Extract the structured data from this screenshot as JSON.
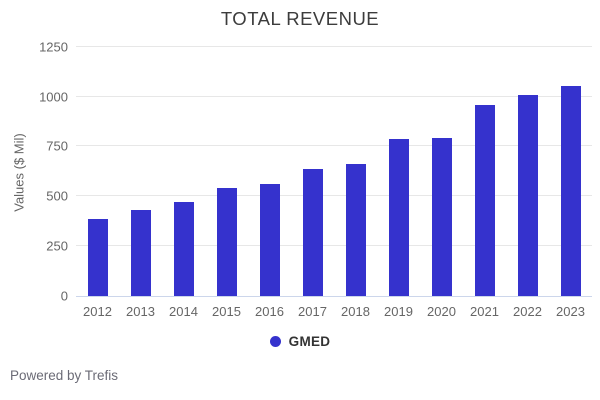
{
  "title": "TOTAL REVENUE",
  "footer": "Powered by Trefis",
  "colors": {
    "bar": "#3532cd",
    "grid": "#e7e7e7",
    "axis_line": "#ccd6eb",
    "tick_text": "#666666",
    "title_text": "#3c3c3c"
  },
  "chart_data": {
    "type": "bar",
    "title": "TOTAL REVENUE",
    "xlabel": "",
    "ylabel": "Values ($ Mil)",
    "categories": [
      "2012",
      "2013",
      "2014",
      "2015",
      "2016",
      "2017",
      "2018",
      "2019",
      "2020",
      "2021",
      "2022",
      "2023"
    ],
    "series": [
      {
        "name": "GMED",
        "values": [
          385,
          433,
          473,
          540,
          564,
          637,
          660,
          785,
          790,
          958,
          1008,
          1052
        ]
      }
    ],
    "ylim": [
      0,
      1250
    ],
    "yticks": [
      0,
      250,
      500,
      750,
      1000,
      1250
    ],
    "grid": true,
    "legend_position": "bottom"
  }
}
